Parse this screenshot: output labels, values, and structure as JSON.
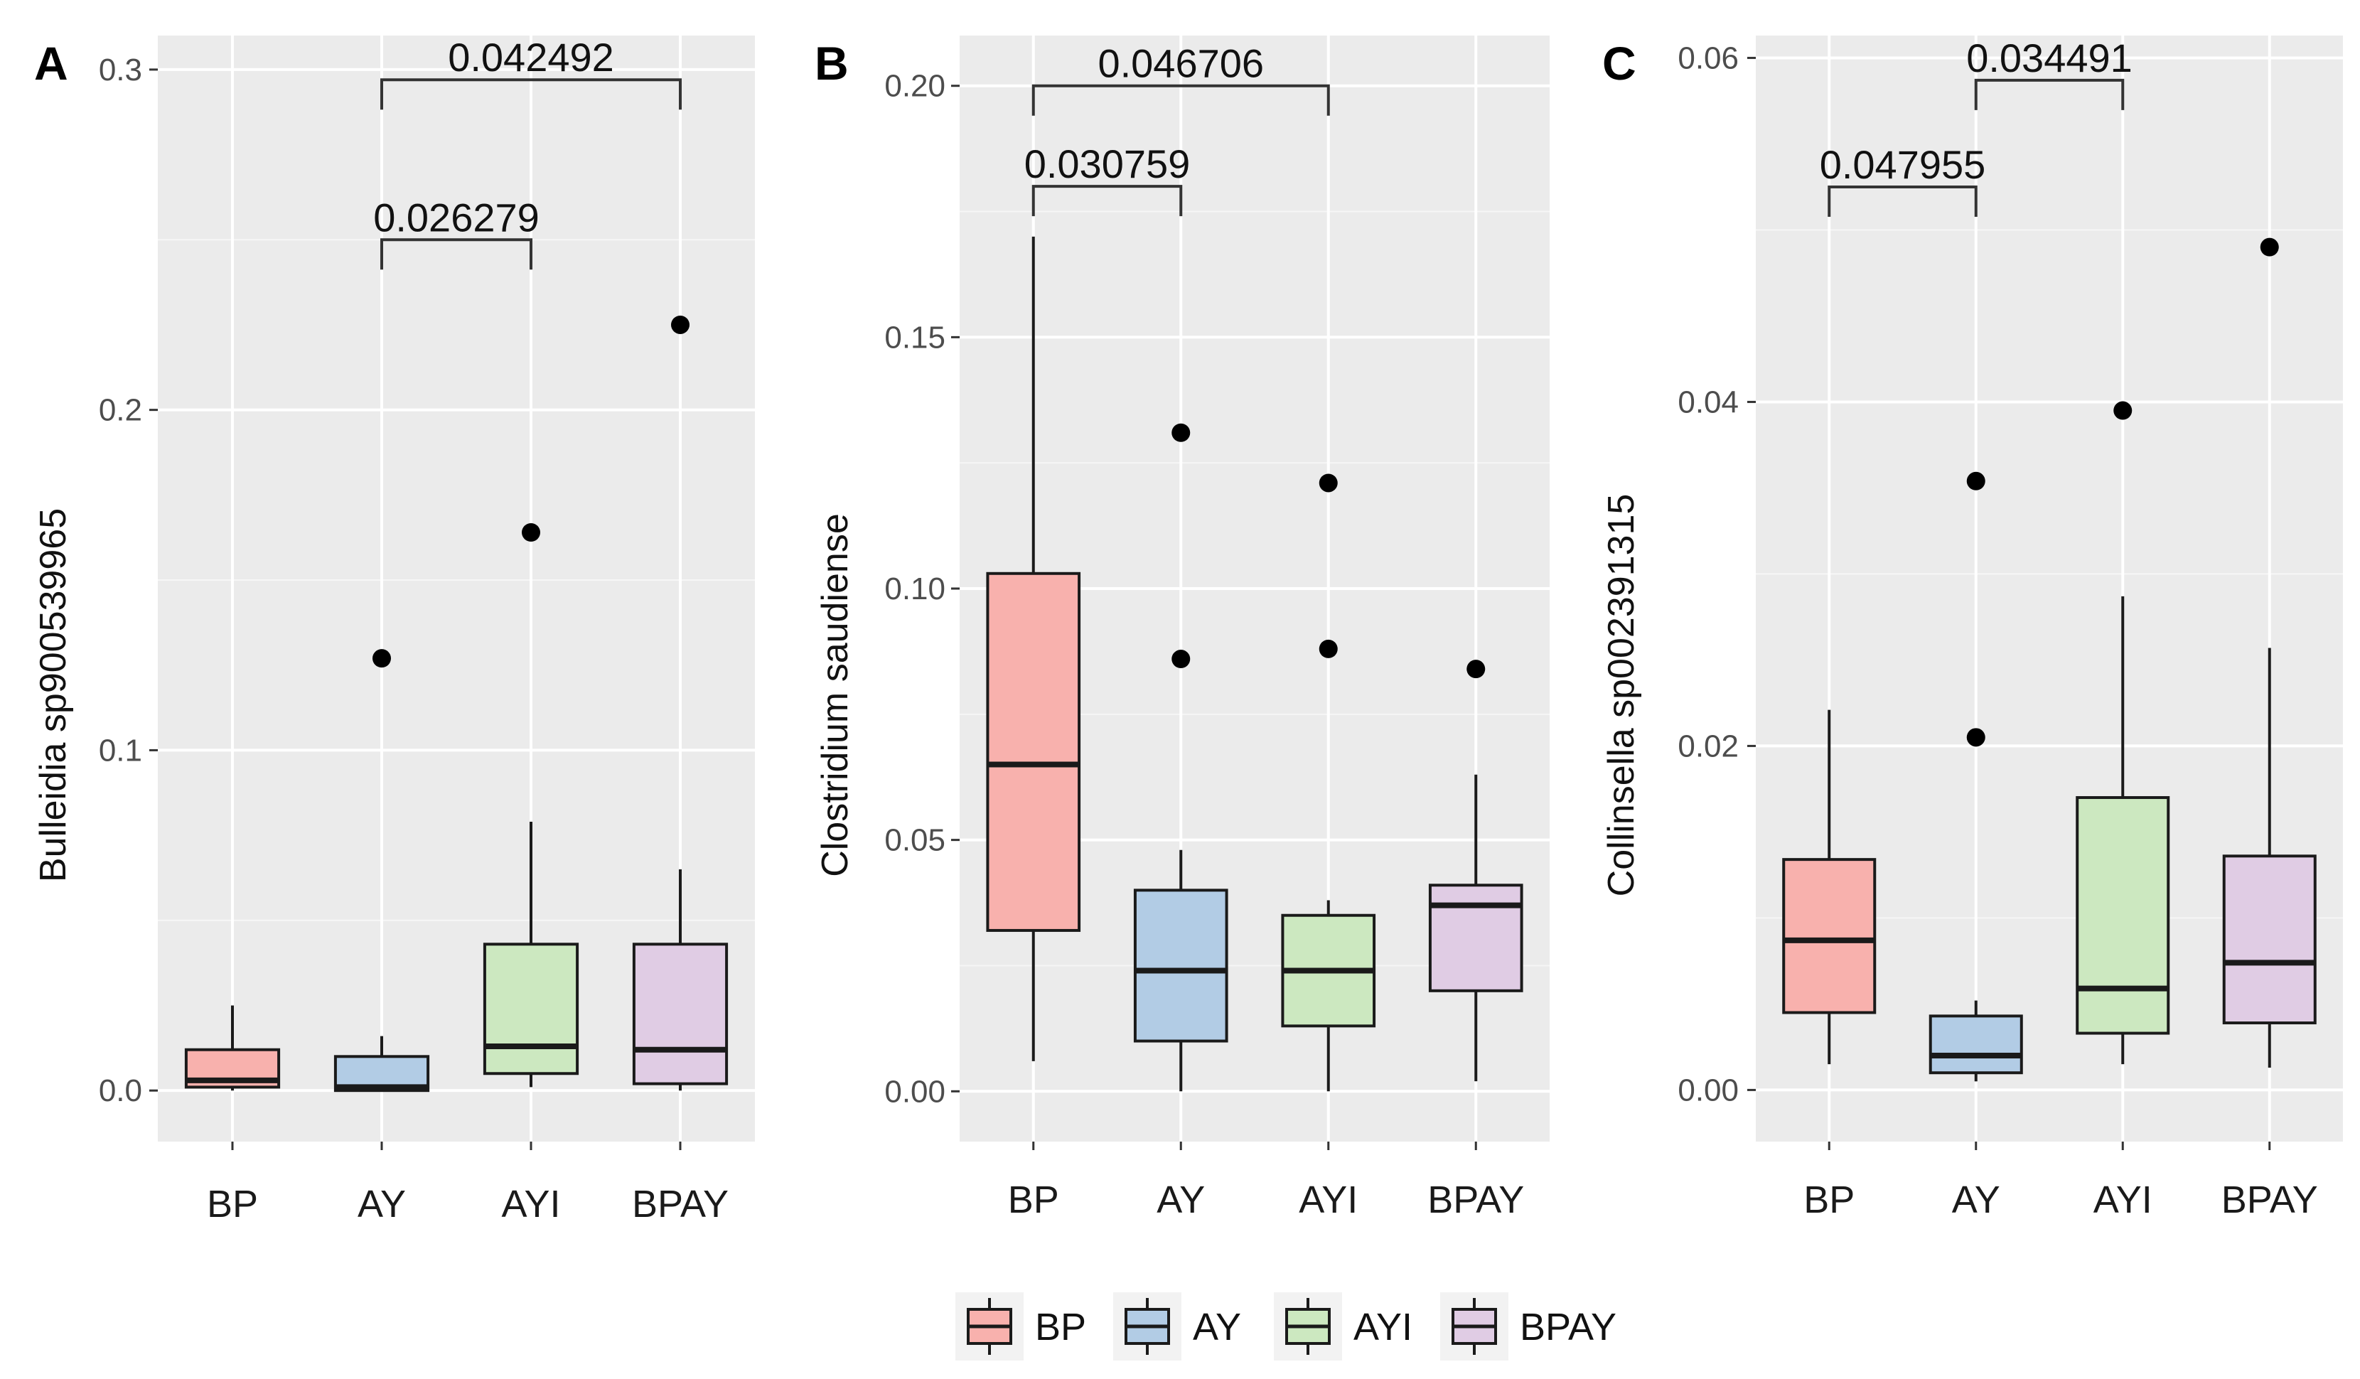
{
  "colors": {
    "panel_bg": "#EBEBEB",
    "grid": "#FFFFFF",
    "box_stroke": "#1A1A1A",
    "BP": "#F8B1AD",
    "AY": "#B2CCE5",
    "AYI": "#CCE8C0",
    "BPAY": "#E0CCE4"
  },
  "legend": {
    "items": [
      "BP",
      "AY",
      "AYI",
      "BPAY"
    ]
  },
  "chart_data": [
    {
      "type": "box",
      "panel_label": "A",
      "ylabel": "Bulleidia sp900539965",
      "categories": [
        "BP",
        "AY",
        "AYI",
        "BPAY"
      ],
      "ylim": [
        -0.015,
        0.31
      ],
      "ticks": [
        0.0,
        0.1,
        0.2,
        0.3
      ],
      "tick_labels": [
        "0.0",
        "0.1",
        "0.2",
        "0.3"
      ],
      "boxes": [
        {
          "group": "BP",
          "min": 0.0,
          "q1": 0.001,
          "median": 0.003,
          "q3": 0.012,
          "max": 0.025,
          "outliers": []
        },
        {
          "group": "AY",
          "min": 0.0,
          "q1": 0.0,
          "median": 0.001,
          "q3": 0.01,
          "max": 0.016,
          "outliers": [
            0.127
          ]
        },
        {
          "group": "AYI",
          "min": 0.001,
          "q1": 0.005,
          "median": 0.013,
          "q3": 0.043,
          "max": 0.079,
          "outliers": [
            0.164
          ]
        },
        {
          "group": "BPAY",
          "min": 0.0,
          "q1": 0.002,
          "median": 0.012,
          "q3": 0.043,
          "max": 0.065,
          "outliers": [
            0.225
          ]
        }
      ],
      "brackets": [
        {
          "from": "AY",
          "to": "AYI",
          "y": 0.25,
          "label": "0.026279"
        },
        {
          "from": "AY",
          "to": "BPAY",
          "y": 0.297,
          "label": "0.042492"
        }
      ]
    },
    {
      "type": "box",
      "panel_label": "B",
      "ylabel": "Clostridium saudiense",
      "categories": [
        "BP",
        "AY",
        "AYI",
        "BPAY"
      ],
      "ylim": [
        -0.01,
        0.21
      ],
      "ticks": [
        0.0,
        0.05,
        0.1,
        0.15,
        0.2
      ],
      "tick_labels": [
        "0.00",
        "0.05",
        "0.10",
        "0.15",
        "0.20"
      ],
      "boxes": [
        {
          "group": "BP",
          "min": 0.006,
          "q1": 0.032,
          "median": 0.065,
          "q3": 0.103,
          "max": 0.17,
          "outliers": []
        },
        {
          "group": "AY",
          "min": 0.0,
          "q1": 0.01,
          "median": 0.024,
          "q3": 0.04,
          "max": 0.048,
          "outliers": [
            0.086,
            0.131
          ]
        },
        {
          "group": "AYI",
          "min": 0.0,
          "q1": 0.013,
          "median": 0.024,
          "q3": 0.035,
          "max": 0.038,
          "outliers": [
            0.088,
            0.121
          ]
        },
        {
          "group": "BPAY",
          "min": 0.002,
          "q1": 0.02,
          "median": 0.037,
          "q3": 0.041,
          "max": 0.063,
          "outliers": [
            0.084
          ]
        }
      ],
      "brackets": [
        {
          "from": "BP",
          "to": "AY",
          "y": 0.18,
          "label": "0.030759"
        },
        {
          "from": "BP",
          "to": "AYI",
          "y": 0.2,
          "label": "0.046706"
        }
      ]
    },
    {
      "type": "box",
      "panel_label": "C",
      "ylabel": "Collinsella sp002391315",
      "categories": [
        "BP",
        "AY",
        "AYI",
        "BPAY"
      ],
      "ylim": [
        -0.003,
        0.0613
      ],
      "ticks": [
        0.0,
        0.02,
        0.04,
        0.06
      ],
      "tick_labels": [
        "0.00",
        "0.02",
        "0.04",
        "0.06"
      ],
      "boxes": [
        {
          "group": "BP",
          "min": 0.0015,
          "q1": 0.0045,
          "median": 0.0087,
          "q3": 0.0134,
          "max": 0.0221,
          "outliers": []
        },
        {
          "group": "AY",
          "min": 0.0005,
          "q1": 0.001,
          "median": 0.002,
          "q3": 0.0043,
          "max": 0.0052,
          "outliers": [
            0.0205,
            0.0354
          ]
        },
        {
          "group": "AYI",
          "min": 0.0015,
          "q1": 0.0033,
          "median": 0.0059,
          "q3": 0.017,
          "max": 0.0287,
          "outliers": [
            0.0395
          ]
        },
        {
          "group": "BPAY",
          "min": 0.0013,
          "q1": 0.0039,
          "median": 0.0074,
          "q3": 0.0136,
          "max": 0.0257,
          "outliers": [
            0.049
          ]
        }
      ],
      "brackets": [
        {
          "from": "BP",
          "to": "AY",
          "y": 0.0525,
          "label": "0.047955"
        },
        {
          "from": "AY",
          "to": "AYI",
          "y": 0.0587,
          "label": "0.034491"
        }
      ]
    }
  ]
}
